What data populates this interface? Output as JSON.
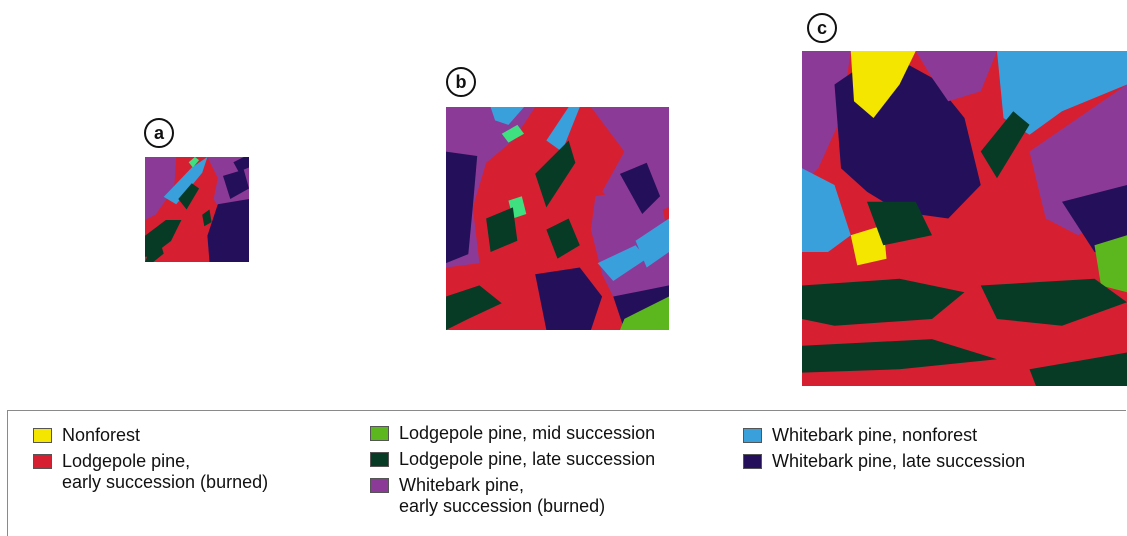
{
  "panels": [
    {
      "id": "a",
      "label": "a"
    },
    {
      "id": "b",
      "label": "b"
    },
    {
      "id": "c",
      "label": "c"
    }
  ],
  "colors": {
    "nonforest": "#f5e600",
    "lodgepole_early": "#d71f32",
    "lodgepole_mid": "#5cb71e",
    "lodgepole_late": "#073b26",
    "whitebark_early": "#8c3a98",
    "whitebark_nonforest": "#3aa0db",
    "whitebark_late": "#24105a",
    "lodgepole_accent": "#3ee080"
  },
  "legend": [
    {
      "key": "nonforest",
      "label": "Nonforest",
      "color": "#f5e600"
    },
    {
      "key": "lodgepole_early",
      "label": "Lodgepole pine,\nearly succession (burned)",
      "color": "#d71f32"
    },
    {
      "key": "lodgepole_mid",
      "label": "Lodgepole pine, mid succession",
      "color": "#5cb71e"
    },
    {
      "key": "lodgepole_late",
      "label": "Lodgepole pine, late succession",
      "color": "#073b26"
    },
    {
      "key": "whitebark_early",
      "label": "Whitebark pine,\nearly succession (burned)",
      "color": "#8c3a98"
    },
    {
      "key": "whitebark_nonforest",
      "label": "Whitebark pine, nonforest",
      "color": "#3aa0db"
    },
    {
      "key": "whitebark_late",
      "label": "Whitebark pine, late succession",
      "color": "#24105a"
    }
  ]
}
